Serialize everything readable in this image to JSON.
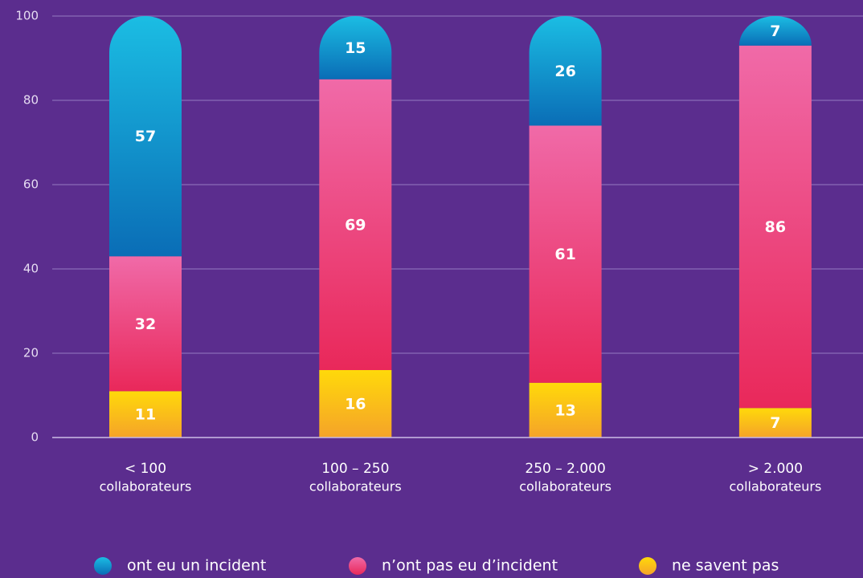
{
  "chart_data": {
    "type": "stacked_bar",
    "categories": [
      [
        "< 100",
        "collaborateurs"
      ],
      [
        "100 – 250",
        "collaborateurs"
      ],
      [
        "250 – 2.000",
        "collaborateurs"
      ],
      [
        "> 2.000",
        "collaborateurs"
      ]
    ],
    "series": [
      {
        "name": "ne savent pas",
        "color": "#fbbd16",
        "gradient": [
          "#ffd90a",
          "#f5a329"
        ],
        "values": [
          11,
          16,
          13,
          7
        ]
      },
      {
        "name": "n’ont pas eu d’incident",
        "color": "#ee4c86",
        "gradient": [
          "#f06aa8",
          "#e9285a"
        ],
        "values": [
          32,
          69,
          61,
          86
        ]
      },
      {
        "name": "ont eu un incident",
        "color": "#1596d0",
        "gradient": [
          "#1bbde3",
          "#0a6db6"
        ],
        "values": [
          57,
          15,
          26,
          7
        ]
      }
    ],
    "ylim": [
      0,
      100
    ],
    "yticks": [
      0,
      20,
      40,
      60,
      80,
      100
    ],
    "grid": true
  }
}
